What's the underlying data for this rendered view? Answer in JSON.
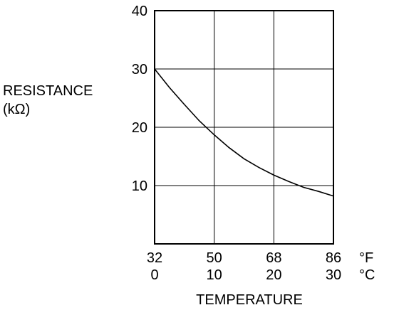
{
  "chart_data": {
    "type": "line",
    "title": "",
    "ylabel_lines": [
      "RESISTANCE",
      "(kΩ)"
    ],
    "xlabel": "TEMPERATURE",
    "xlim": [
      0,
      30
    ],
    "ylim": [
      0,
      40
    ],
    "x_ticks_f": [
      "32",
      "50",
      "68",
      "86"
    ],
    "x_ticks_c": [
      "0",
      "10",
      "20",
      "30"
    ],
    "x_unit_f": "°F",
    "x_unit_c": "°C",
    "y_ticks": [
      "10",
      "20",
      "30",
      "40"
    ],
    "grid": true,
    "series": [
      {
        "x": [
          0,
          2.5,
          5,
          7.5,
          10,
          12.5,
          15,
          17.5,
          20,
          22.5,
          25,
          27.5,
          30
        ],
        "y": [
          30.0,
          26.8,
          23.9,
          21.1,
          18.7,
          16.5,
          14.6,
          13.1,
          11.8,
          10.7,
          9.7,
          9.0,
          8.2
        ]
      }
    ]
  }
}
